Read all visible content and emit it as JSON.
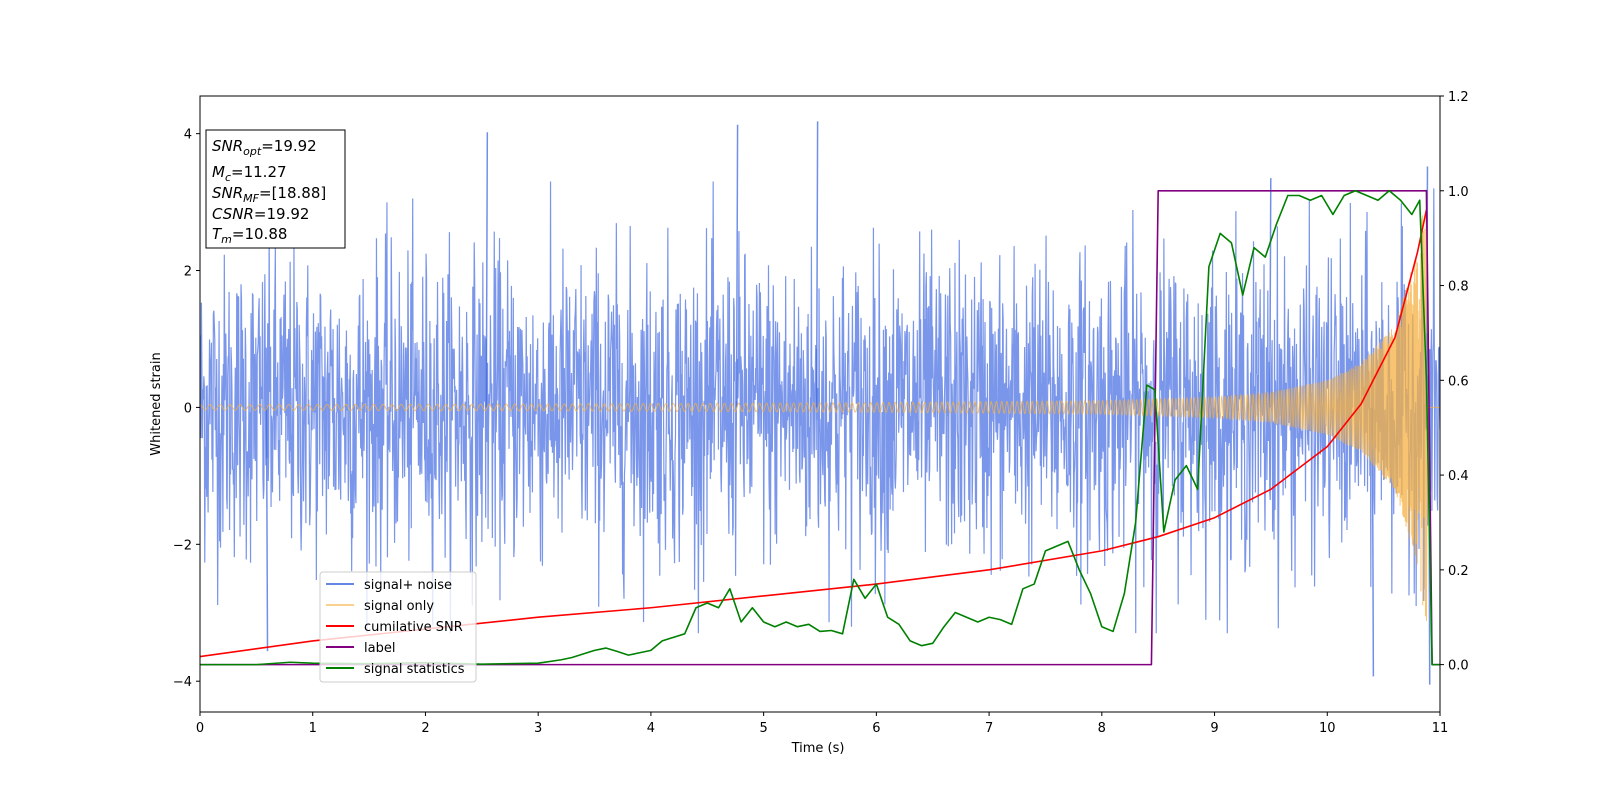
{
  "chart_data": {
    "type": "line",
    "xlabel": "Time (s)",
    "ylabel_left": "Whitened strain",
    "ylabel_right": "",
    "xlim": [
      0,
      11
    ],
    "ylim_left": [
      -4.45,
      4.55
    ],
    "ylim_right": [
      -0.1,
      1.2
    ],
    "xticks": [
      0,
      1,
      2,
      3,
      4,
      5,
      6,
      7,
      8,
      9,
      10,
      11
    ],
    "yticks_left": [
      -4,
      -2,
      0,
      2,
      4
    ],
    "yticks_right": [
      0.0,
      0.2,
      0.4,
      0.6,
      0.8,
      1.0,
      1.2
    ],
    "grid": false,
    "legend_position": "lower-left",
    "annotation": {
      "lines": [
        {
          "base": "SNR",
          "sub": "opt",
          "value": "=19.92"
        },
        {
          "base": "M",
          "sub": "c",
          "value": "=11.27"
        },
        {
          "base": "SNR",
          "sub": "MF",
          "value": "=[18.88]"
        },
        {
          "base": "CSNR",
          "sub": "",
          "value": "=19.92"
        },
        {
          "base": "T",
          "sub": "m",
          "value": "=10.88"
        }
      ]
    },
    "series": [
      {
        "name": "signal+ noise",
        "axis": "left",
        "color": "#4169e1",
        "kind": "noise",
        "std": 1.1,
        "x_range": [
          0,
          11
        ],
        "peaks": [
          [
            2.54,
            4.02
          ],
          [
            4.76,
            4.13
          ],
          [
            5.47,
            4.18
          ],
          [
            10.88,
            3.52
          ],
          [
            9.49,
            3.35
          ],
          [
            0.59,
            -3.56
          ],
          [
            10.4,
            -3.93
          ],
          [
            10.9,
            -4.05
          ]
        ]
      },
      {
        "name": "signal only",
        "axis": "left",
        "color": "#f5b041",
        "kind": "chirp",
        "x_range": [
          0,
          10.88
        ],
        "envelope_points": [
          [
            0,
            0.04
          ],
          [
            3,
            0.05
          ],
          [
            6,
            0.07
          ],
          [
            8,
            0.1
          ],
          [
            9,
            0.15
          ],
          [
            9.5,
            0.22
          ],
          [
            10,
            0.4
          ],
          [
            10.3,
            0.65
          ],
          [
            10.6,
            1.2
          ],
          [
            10.8,
            2.3
          ],
          [
            10.88,
            3.3
          ]
        ]
      },
      {
        "name": "cumilative SNR",
        "axis": "right",
        "color": "#ff0000",
        "x": [
          0,
          1,
          2,
          3,
          4,
          5,
          6,
          7,
          8,
          8.5,
          9,
          9.5,
          10,
          10.3,
          10.6,
          10.8,
          10.88
        ],
        "y": [
          0.017,
          0.05,
          0.075,
          0.1,
          0.12,
          0.145,
          0.17,
          0.2,
          0.24,
          0.27,
          0.31,
          0.37,
          0.46,
          0.55,
          0.69,
          0.87,
          0.96
        ]
      },
      {
        "name": "label",
        "axis": "right",
        "color": "#800080",
        "x": [
          0,
          8.44,
          8.5,
          10.88,
          10.93,
          11
        ],
        "y": [
          0,
          0,
          1,
          1,
          0,
          0
        ]
      },
      {
        "name": "signal statistics",
        "axis": "right",
        "color": "#008000",
        "x": [
          0,
          0.5,
          0.8,
          1.0,
          1.5,
          2.0,
          2.5,
          3.0,
          3.2,
          3.3,
          3.5,
          3.6,
          3.7,
          3.8,
          3.9,
          4.0,
          4.1,
          4.3,
          4.4,
          4.5,
          4.6,
          4.7,
          4.8,
          4.9,
          5.0,
          5.1,
          5.2,
          5.3,
          5.4,
          5.5,
          5.6,
          5.7,
          5.8,
          5.9,
          6.0,
          6.1,
          6.2,
          6.3,
          6.4,
          6.5,
          6.6,
          6.7,
          6.8,
          6.9,
          7.0,
          7.1,
          7.2,
          7.3,
          7.4,
          7.5,
          7.6,
          7.7,
          7.8,
          7.9,
          8.0,
          8.1,
          8.2,
          8.3,
          8.4,
          8.47,
          8.55,
          8.65,
          8.75,
          8.85,
          8.95,
          9.05,
          9.15,
          9.25,
          9.35,
          9.45,
          9.55,
          9.65,
          9.75,
          9.85,
          9.95,
          10.05,
          10.15,
          10.25,
          10.35,
          10.45,
          10.55,
          10.65,
          10.75,
          10.82,
          10.88,
          10.93,
          11.0
        ],
        "y": [
          0.0,
          0.0,
          0.005,
          0.003,
          0.002,
          0.004,
          0.001,
          0.003,
          0.01,
          0.015,
          0.03,
          0.035,
          0.028,
          0.02,
          0.025,
          0.03,
          0.05,
          0.065,
          0.12,
          0.13,
          0.12,
          0.16,
          0.09,
          0.12,
          0.09,
          0.08,
          0.09,
          0.08,
          0.085,
          0.07,
          0.072,
          0.065,
          0.18,
          0.14,
          0.17,
          0.1,
          0.085,
          0.05,
          0.04,
          0.045,
          0.08,
          0.11,
          0.1,
          0.09,
          0.1,
          0.095,
          0.085,
          0.16,
          0.17,
          0.24,
          0.25,
          0.26,
          0.2,
          0.15,
          0.08,
          0.07,
          0.15,
          0.3,
          0.59,
          0.58,
          0.28,
          0.39,
          0.42,
          0.37,
          0.84,
          0.91,
          0.89,
          0.78,
          0.88,
          0.86,
          0.93,
          0.99,
          0.99,
          0.98,
          0.99,
          0.95,
          0.99,
          1.0,
          0.99,
          0.98,
          1.0,
          0.98,
          0.95,
          0.98,
          0.6,
          0.0,
          0.0
        ]
      }
    ]
  }
}
